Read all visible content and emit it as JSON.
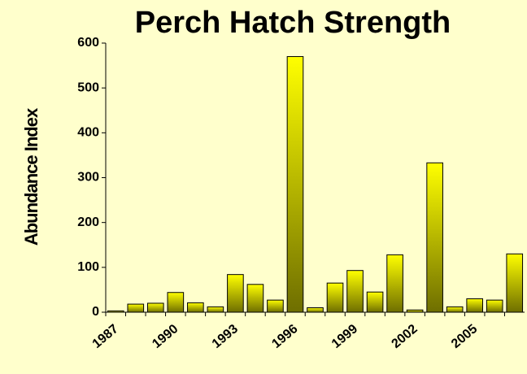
{
  "chart_data": {
    "type": "bar",
    "title": "Perch Hatch Strength",
    "y_label": "Abundance Index",
    "categories": [
      "1987",
      null,
      null,
      "1990",
      null,
      null,
      "1993",
      null,
      null,
      "1996",
      null,
      null,
      "1999",
      null,
      null,
      "2002",
      null,
      null,
      "2005",
      null,
      null
    ],
    "values": [
      3,
      18,
      20,
      44,
      21,
      12,
      84,
      62,
      27,
      570,
      10,
      65,
      93,
      45,
      128,
      5,
      333,
      12,
      30,
      27,
      130
    ],
    "color": "#ffff00",
    "ylim": [
      0,
      600
    ],
    "yticks": [
      0,
      100,
      200,
      300,
      400,
      500,
      600
    ],
    "grid": false
  }
}
